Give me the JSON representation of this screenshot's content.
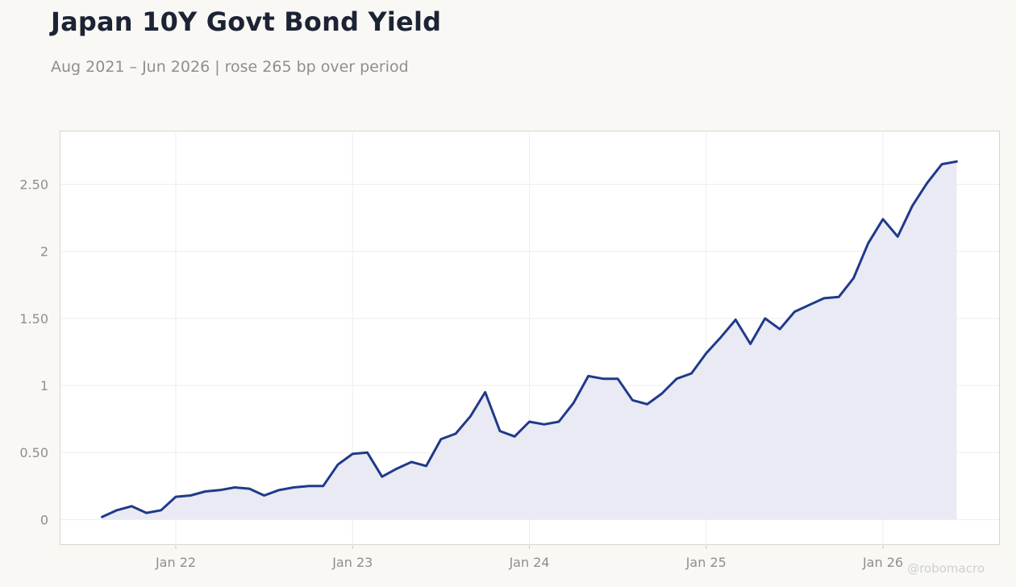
{
  "chart_data": {
    "type": "area",
    "title": "Japan 10Y Govt Bond Yield",
    "subtitle": "Aug 2021 – Jun 2026 | rose 265 bp over period",
    "watermark": "@robomacro",
    "xlabel": "",
    "ylabel": "",
    "x_ticks": [
      "Jan 22",
      "Jan 23",
      "Jan 24",
      "Jan 25",
      "Jan 26"
    ],
    "y_ticks": [
      "0",
      "0.50",
      "1",
      "1.50",
      "2",
      "2.50"
    ],
    "ylim": [
      -0.19,
      2.9
    ],
    "grid": true,
    "colors": {
      "line": "#1f3a8a",
      "fill": "#e9eaf3",
      "grid": "#eeeeee",
      "axis_frame": "#d9d5cc",
      "background": "#f9f8f5",
      "plot_background": "#ffffff"
    },
    "series": [
      {
        "x": [
          "2021-08",
          "2021-09",
          "2021-10",
          "2021-11",
          "2021-12",
          "2022-01",
          "2022-02",
          "2022-03",
          "2022-04",
          "2022-05",
          "2022-06",
          "2022-07",
          "2022-08",
          "2022-09",
          "2022-10",
          "2022-11",
          "2022-12",
          "2023-01",
          "2023-02",
          "2023-03",
          "2023-04",
          "2023-05",
          "2023-06",
          "2023-07",
          "2023-08",
          "2023-09",
          "2023-10",
          "2023-11",
          "2023-12",
          "2024-01",
          "2024-02",
          "2024-03",
          "2024-04",
          "2024-05",
          "2024-06",
          "2024-07",
          "2024-08",
          "2024-09",
          "2024-10",
          "2024-11",
          "2024-12",
          "2025-01",
          "2025-02",
          "2025-03",
          "2025-04",
          "2025-05",
          "2025-06",
          "2025-07",
          "2025-08",
          "2025-09",
          "2025-10",
          "2025-11",
          "2025-12",
          "2026-01",
          "2026-02",
          "2026-03",
          "2026-04",
          "2026-05",
          "2026-06"
        ],
        "values": [
          0.02,
          0.07,
          0.1,
          0.05,
          0.07,
          0.17,
          0.18,
          0.21,
          0.22,
          0.24,
          0.23,
          0.18,
          0.22,
          0.24,
          0.25,
          0.25,
          0.41,
          0.49,
          0.5,
          0.32,
          0.38,
          0.43,
          0.4,
          0.6,
          0.64,
          0.77,
          0.95,
          0.66,
          0.62,
          0.73,
          0.71,
          0.73,
          0.87,
          1.07,
          1.05,
          1.05,
          0.89,
          0.86,
          0.94,
          1.05,
          1.09,
          1.24,
          1.36,
          1.49,
          1.31,
          1.5,
          1.42,
          1.55,
          1.6,
          1.65,
          1.66,
          1.8,
          2.06,
          2.24,
          2.11,
          2.34,
          2.51,
          2.65,
          2.67
        ]
      }
    ]
  }
}
